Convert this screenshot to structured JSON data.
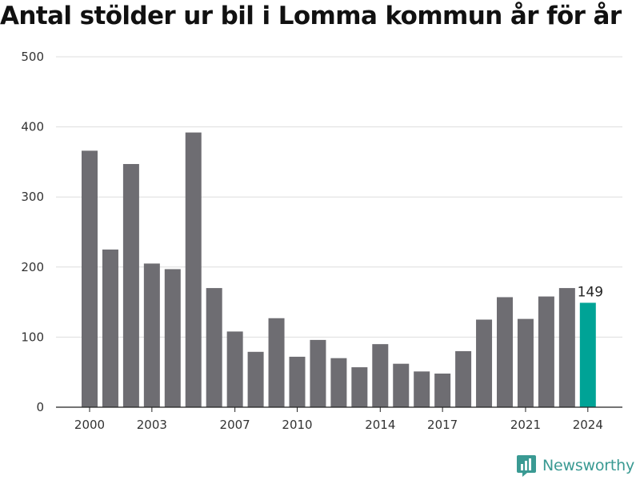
{
  "chart_data": {
    "type": "bar",
    "title": "Antal stölder ur bil i Lomma kommun år för år",
    "xlabel": "",
    "ylabel": "",
    "categories": [
      2000,
      2001,
      2002,
      2003,
      2004,
      2005,
      2006,
      2007,
      2008,
      2009,
      2010,
      2011,
      2012,
      2013,
      2014,
      2015,
      2016,
      2017,
      2018,
      2019,
      2020,
      2021,
      2022,
      2023,
      2024
    ],
    "values": [
      366,
      225,
      347,
      205,
      197,
      392,
      170,
      108,
      79,
      127,
      72,
      96,
      70,
      57,
      90,
      62,
      51,
      48,
      80,
      125,
      157,
      126,
      158,
      170,
      149
    ],
    "x_tick_labels": [
      "2000",
      "2003",
      "2007",
      "2010",
      "2014",
      "2017",
      "2021",
      "2024"
    ],
    "y_ticks": [
      0,
      100,
      200,
      300,
      400,
      500
    ],
    "ylim": [
      0,
      500
    ],
    "highlight": {
      "category": 2024,
      "label": "149"
    },
    "grid": true,
    "legend": "none",
    "colors": {
      "bar": "#6e6d72",
      "highlight": "#00a396",
      "grid": "#dddddd"
    }
  },
  "branding": {
    "name": "Newsworthy",
    "color": "#3a9a93"
  }
}
